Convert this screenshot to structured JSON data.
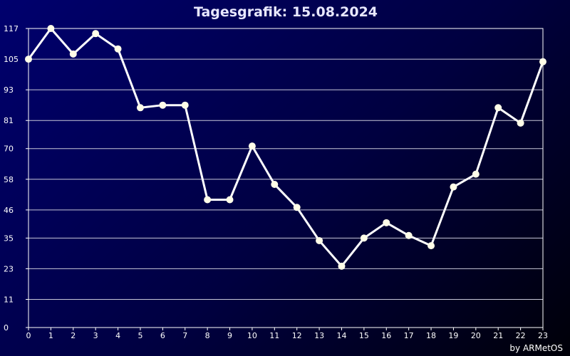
{
  "chart_data": {
    "type": "line",
    "title": "Tagesgrafik: 15.08.2024",
    "credit": "by ARMetOS",
    "x": [
      0,
      1,
      2,
      3,
      4,
      5,
      6,
      7,
      8,
      9,
      10,
      11,
      12,
      13,
      14,
      15,
      16,
      17,
      18,
      19,
      20,
      21,
      22,
      23
    ],
    "x_tick_labels": [
      "0",
      "1",
      "2",
      "3",
      "4",
      "5",
      "6",
      "7",
      "8",
      "9",
      "10",
      "11",
      "12",
      "13",
      "14",
      "15",
      "16",
      "17",
      "18",
      "19",
      "20",
      "21",
      "22",
      "23"
    ],
    "series": [
      {
        "values": [
          105,
          117,
          107,
          115,
          109,
          86,
          87,
          87,
          50,
          50,
          71,
          56,
          47,
          34,
          24,
          35,
          41,
          36,
          32,
          55,
          60,
          86,
          80,
          104
        ]
      }
    ],
    "ylim": [
      0,
      117
    ],
    "y_ticks": [
      0,
      11,
      23,
      35,
      46,
      58,
      70,
      81,
      93,
      105,
      117
    ],
    "y_tick_labels": [
      "0",
      "11",
      "23",
      "35",
      "46",
      "58",
      "70",
      "81",
      "93",
      "105",
      "117"
    ],
    "grid": true,
    "line_color": "#ffffff",
    "marker_color": "#fffde8",
    "gridline_color": "#c8c8d8"
  }
}
